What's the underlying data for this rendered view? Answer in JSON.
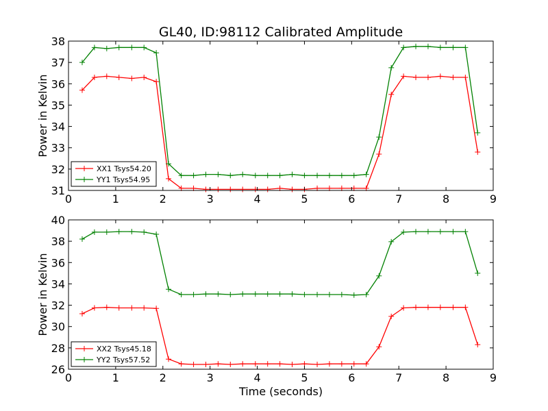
{
  "title": "GL40, ID:98112 Calibrated Amplitude",
  "chart_data": [
    {
      "type": "line",
      "xlabel": "",
      "ylabel": "Power in Kelvin",
      "xlim": [
        0,
        9
      ],
      "ylim": [
        31,
        38
      ],
      "xticks": [
        0,
        1,
        2,
        3,
        4,
        5,
        6,
        7,
        8,
        9
      ],
      "yticks": [
        31,
        32,
        33,
        34,
        35,
        36,
        37,
        38
      ],
      "legend_position": "lower-left",
      "x": [
        0.29,
        0.55,
        0.81,
        1.07,
        1.34,
        1.6,
        1.86,
        2.12,
        2.39,
        2.65,
        2.91,
        3.17,
        3.43,
        3.69,
        3.96,
        4.22,
        4.48,
        4.74,
        5.0,
        5.27,
        5.53,
        5.79,
        6.05,
        6.31,
        6.58,
        6.84,
        7.1,
        7.36,
        7.62,
        7.88,
        8.15,
        8.41,
        8.67
      ],
      "series": [
        {
          "name": "XX1 Tsys54.20",
          "color": "#ff0000",
          "values": [
            35.7,
            36.3,
            36.35,
            36.3,
            36.25,
            36.3,
            36.1,
            31.55,
            31.1,
            31.1,
            31.05,
            31.05,
            31.05,
            31.05,
            31.05,
            31.05,
            31.1,
            31.05,
            31.05,
            31.1,
            31.1,
            31.1,
            31.1,
            31.1,
            32.7,
            35.5,
            36.35,
            36.3,
            36.3,
            36.35,
            36.3,
            36.3,
            32.8
          ]
        },
        {
          "name": "YY1 Tsys54.95",
          "color": "#008000",
          "values": [
            37.0,
            37.7,
            37.65,
            37.7,
            37.7,
            37.7,
            37.45,
            32.25,
            31.7,
            31.7,
            31.75,
            31.75,
            31.7,
            31.75,
            31.7,
            31.7,
            31.7,
            31.75,
            31.7,
            31.7,
            31.7,
            31.7,
            31.7,
            31.75,
            33.5,
            36.75,
            37.7,
            37.75,
            37.75,
            37.7,
            37.7,
            37.7,
            33.7
          ]
        }
      ]
    },
    {
      "type": "line",
      "xlabel": "Time (seconds)",
      "ylabel": "Power in Kelvin",
      "xlim": [
        0,
        9
      ],
      "ylim": [
        26,
        40
      ],
      "xticks": [
        0,
        1,
        2,
        3,
        4,
        5,
        6,
        7,
        8,
        9
      ],
      "yticks": [
        26,
        28,
        30,
        32,
        34,
        36,
        38,
        40
      ],
      "legend_position": "lower-left",
      "x": [
        0.29,
        0.55,
        0.81,
        1.07,
        1.34,
        1.6,
        1.86,
        2.12,
        2.39,
        2.65,
        2.91,
        3.17,
        3.43,
        3.69,
        3.96,
        4.22,
        4.48,
        4.74,
        5.0,
        5.27,
        5.53,
        5.79,
        6.05,
        6.31,
        6.58,
        6.84,
        7.1,
        7.36,
        7.62,
        7.88,
        8.15,
        8.41,
        8.67
      ],
      "series": [
        {
          "name": "XX2 Tsys45.18",
          "color": "#ff0000",
          "values": [
            31.2,
            31.75,
            31.8,
            31.75,
            31.75,
            31.75,
            31.7,
            26.95,
            26.5,
            26.45,
            26.45,
            26.5,
            26.45,
            26.5,
            26.5,
            26.5,
            26.5,
            26.45,
            26.5,
            26.45,
            26.5,
            26.5,
            26.5,
            26.5,
            28.1,
            30.95,
            31.75,
            31.8,
            31.8,
            31.8,
            31.8,
            31.8,
            28.3
          ]
        },
        {
          "name": "YY2 Tsys57.52",
          "color": "#008000",
          "values": [
            38.2,
            38.85,
            38.85,
            38.9,
            38.9,
            38.85,
            38.65,
            33.5,
            33.0,
            33.0,
            33.05,
            33.05,
            33.0,
            33.05,
            33.05,
            33.05,
            33.05,
            33.05,
            33.0,
            33.0,
            33.0,
            33.0,
            32.95,
            33.0,
            34.75,
            37.95,
            38.85,
            38.9,
            38.9,
            38.9,
            38.9,
            38.9,
            35.0
          ]
        }
      ]
    }
  ]
}
